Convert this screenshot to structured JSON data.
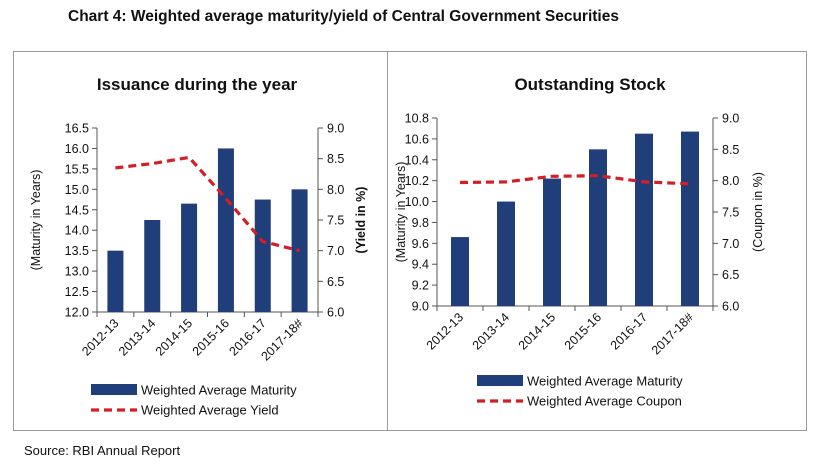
{
  "title": "Chart 4:  Weighted average maturity/yield of Central Government Securities",
  "source": "Source: RBI Annual Report",
  "colors": {
    "bar": "#1f3e7a",
    "line": "#d21f26"
  },
  "chart_data": [
    {
      "type": "bar",
      "title": "Issuance during the year",
      "categories": [
        "2012-13",
        "2013-14",
        "2014-15",
        "2015-16",
        "2016-17",
        "2017-18#"
      ],
      "series": [
        {
          "name": "Weighted Average Maturity",
          "type": "bar",
          "axis": "left",
          "values": [
            13.5,
            14.25,
            14.65,
            16.0,
            14.75,
            15.0
          ]
        },
        {
          "name": "Weighted Average Yield",
          "type": "line",
          "style": "dashed",
          "axis": "right",
          "values": [
            8.35,
            8.42,
            8.52,
            7.85,
            7.15,
            7.0
          ]
        }
      ],
      "ylabel": "(Maturity in Years)",
      "ylim": [
        12.0,
        16.5
      ],
      "yticks": [
        "12.0",
        "12.5",
        "13.0",
        "13.5",
        "14.0",
        "14.5",
        "15.0",
        "15.5",
        "16.0",
        "16.5"
      ],
      "y2label": "(Yield in %)",
      "y2lim": [
        6.0,
        9.0
      ],
      "y2ticks": [
        "6.0",
        "6.5",
        "7.0",
        "7.5",
        "8.0",
        "8.5",
        "9.0"
      ],
      "grid": false,
      "legend": "bottom"
    },
    {
      "type": "bar",
      "title": "Outstanding Stock",
      "categories": [
        "2012-13",
        "2013-14",
        "2014-15",
        "2015-16",
        "2016-17",
        "2017-18#"
      ],
      "series": [
        {
          "name": "Weighted Average Maturity",
          "type": "bar",
          "axis": "left",
          "values": [
            9.66,
            10.0,
            10.22,
            10.5,
            10.65,
            10.67
          ]
        },
        {
          "name": "Weighted Average Coupon",
          "type": "line",
          "style": "dashed",
          "axis": "right",
          "values": [
            7.97,
            7.98,
            8.07,
            8.08,
            7.98,
            7.95
          ]
        }
      ],
      "ylabel": "(Maturity in Years)",
      "ylim": [
        9.0,
        10.8
      ],
      "yticks": [
        "9.0",
        "9.2",
        "9.4",
        "9.6",
        "9.8",
        "10.0",
        "10.2",
        "10.4",
        "10.6",
        "10.8"
      ],
      "y2label": "(Coupon in %)",
      "y2lim": [
        6.0,
        9.0
      ],
      "y2ticks": [
        "6.0",
        "6.5",
        "7.0",
        "7.5",
        "8.0",
        "8.5",
        "9.0"
      ],
      "grid": false,
      "legend": "bottom"
    }
  ]
}
